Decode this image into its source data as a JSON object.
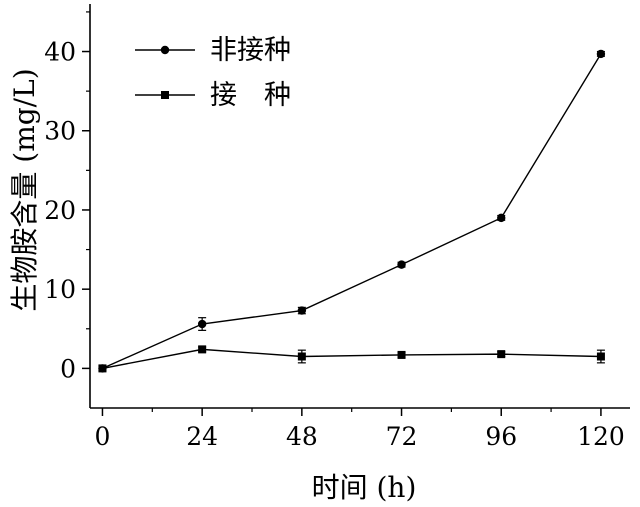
{
  "chart_data": {
    "type": "line",
    "xlabel": "时间 (h)",
    "ylabel": "生物胺含量 (mg/L)",
    "x": [
      0,
      24,
      48,
      72,
      96,
      120
    ],
    "xlim": [
      -3,
      127
    ],
    "ylim": [
      -5,
      46
    ],
    "xticks": [
      0,
      24,
      48,
      72,
      96,
      120
    ],
    "yticks": [
      0,
      10,
      20,
      30,
      40
    ],
    "xtick_labels": [
      "0",
      "24",
      "48",
      "72",
      "96",
      "120"
    ],
    "ytick_labels": [
      "0",
      "10",
      "20",
      "30",
      "40"
    ],
    "legend_position": "top-left",
    "grid": false,
    "series": [
      {
        "name": "非接种",
        "marker": "circle",
        "values": [
          0.0,
          5.6,
          7.3,
          13.1,
          19.0,
          39.7
        ],
        "errors": [
          0.3,
          0.8,
          0.4,
          0.3,
          0.3,
          0.3
        ]
      },
      {
        "name": "接　种",
        "marker": "square",
        "values": [
          0.0,
          2.4,
          1.5,
          1.7,
          1.8,
          1.5
        ],
        "errors": [
          0.3,
          0.3,
          0.8,
          0.3,
          0.3,
          0.8
        ]
      }
    ],
    "color": "#000000"
  }
}
